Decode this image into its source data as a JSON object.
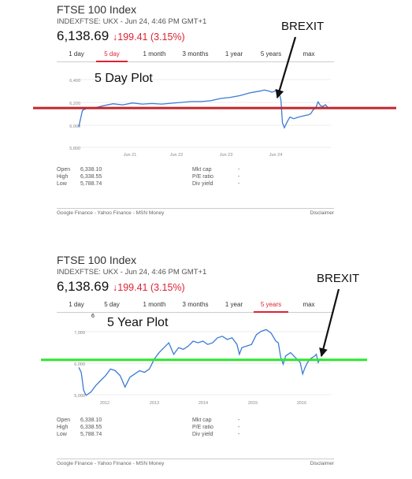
{
  "chart_data": [
    {
      "type": "line",
      "title": "FTSE 100 Index",
      "subtitle": "INDEXFTSE: UKX - Jun 24, 4:46 PM GMT+1",
      "price": "6,138.69",
      "change": "↓199.41 (3.15%)",
      "tabs": [
        "1 day",
        "5 day",
        "1 month",
        "3 months",
        "1 year",
        "5 years",
        "max"
      ],
      "selected_tab": "5 day",
      "plot_label": "5 Day Plot",
      "annotation": "BREXIT",
      "y_ticks": [
        "6,400",
        "6,200",
        "6,000",
        "5,800"
      ],
      "x_ticks": [
        "Jun 21",
        "Jun 22",
        "Jun 23",
        "Jun 24"
      ],
      "ylim": [
        5800,
        6500
      ],
      "xlim": [
        0,
        100
      ],
      "series": [
        {
          "values": [
            [
              0,
              6004
            ],
            [
              1.5,
              6150
            ],
            [
              3,
              6165
            ],
            [
              5,
              6165
            ],
            [
              10,
              6190
            ],
            [
              14,
              6208
            ],
            [
              18,
              6198
            ],
            [
              22,
              6215
            ],
            [
              26,
              6205
            ],
            [
              30,
              6210
            ],
            [
              34,
              6205
            ],
            [
              38,
              6213
            ],
            [
              42,
              6220
            ],
            [
              46,
              6228
            ],
            [
              50,
              6228
            ],
            [
              54,
              6235
            ],
            [
              58,
              6255
            ],
            [
              62,
              6265
            ],
            [
              66,
              6280
            ],
            [
              70,
              6305
            ],
            [
              74,
              6320
            ],
            [
              76,
              6330
            ],
            [
              78,
              6320
            ],
            [
              79,
              6310
            ],
            [
              80,
              6318
            ],
            [
              81,
              6330
            ],
            [
              82,
              6318
            ],
            [
              82.8,
              6235
            ],
            [
              83.4,
              6040
            ],
            [
              84.2,
              5995
            ],
            [
              85.5,
              6055
            ],
            [
              86.5,
              6090
            ],
            [
              88,
              6075
            ],
            [
              90,
              6090
            ],
            [
              92,
              6100
            ],
            [
              94,
              6110
            ],
            [
              95,
              6120
            ],
            [
              96,
              6155
            ],
            [
              97,
              6170
            ],
            [
              98,
              6225
            ],
            [
              99,
              6190
            ],
            [
              100,
              6185
            ],
            [
              101,
              6200
            ],
            [
              102,
              6175
            ]
          ]
        }
      ],
      "reference_line": {
        "y": 6170,
        "color": "#c0272d"
      },
      "stats": [
        {
          "label": "Open",
          "value": "6,338.10",
          "label2": "Mkt cap",
          "value2": "-"
        },
        {
          "label": "High",
          "value": "6,338.55",
          "label2": "P/E ratio",
          "value2": "-"
        },
        {
          "label": "Low",
          "value": "5,788.74",
          "label2": "Div yield",
          "value2": "-"
        }
      ],
      "footer_sources": "Google Finance - Yahoo Finance - MSN Money",
      "footer_disclaimer": "Disclaimer"
    },
    {
      "type": "line",
      "title": "FTSE 100 Index",
      "subtitle": "INDEXFTSE: UKX - Jun 24, 4:46 PM GMT+1",
      "price": "6,138.69",
      "change": "↓199.41 (3.15%)",
      "tabs": [
        "1 day",
        "5 day",
        "1 month",
        "3 months",
        "1 year",
        "5 years",
        "max"
      ],
      "selected_tab": "5 years",
      "plot_label": "5 Year Plot",
      "annotation": "BREXIT",
      "small_label": "6",
      "y_ticks": [
        "7,000",
        "6,000",
        "5,000"
      ],
      "x_ticks": [
        "2012",
        "2013",
        "2014",
        "2015",
        "2016"
      ],
      "ylim": [
        4900,
        7300
      ],
      "xlim": [
        2011.45,
        2016.5
      ],
      "series": [
        {
          "values": [
            [
              2011.45,
              5900
            ],
            [
              2011.5,
              5750
            ],
            [
              2011.55,
              5200
            ],
            [
              2011.6,
              5050
            ],
            [
              2011.7,
              5150
            ],
            [
              2011.8,
              5350
            ],
            [
              2011.9,
              5500
            ],
            [
              2012.0,
              5650
            ],
            [
              2012.1,
              5850
            ],
            [
              2012.2,
              5800
            ],
            [
              2012.3,
              5650
            ],
            [
              2012.4,
              5300
            ],
            [
              2012.45,
              5450
            ],
            [
              2012.5,
              5600
            ],
            [
              2012.6,
              5700
            ],
            [
              2012.7,
              5800
            ],
            [
              2012.8,
              5750
            ],
            [
              2012.9,
              5850
            ],
            [
              2013.0,
              6150
            ],
            [
              2013.1,
              6350
            ],
            [
              2013.2,
              6500
            ],
            [
              2013.3,
              6650
            ],
            [
              2013.4,
              6300
            ],
            [
              2013.5,
              6500
            ],
            [
              2013.6,
              6450
            ],
            [
              2013.7,
              6550
            ],
            [
              2013.8,
              6700
            ],
            [
              2013.9,
              6650
            ],
            [
              2014.0,
              6700
            ],
            [
              2014.1,
              6600
            ],
            [
              2014.2,
              6650
            ],
            [
              2014.3,
              6800
            ],
            [
              2014.4,
              6850
            ],
            [
              2014.5,
              6750
            ],
            [
              2014.6,
              6800
            ],
            [
              2014.7,
              6600
            ],
            [
              2014.75,
              6300
            ],
            [
              2014.8,
              6500
            ],
            [
              2014.9,
              6550
            ],
            [
              2015.0,
              6600
            ],
            [
              2015.1,
              6900
            ],
            [
              2015.2,
              7000
            ],
            [
              2015.3,
              7050
            ],
            [
              2015.4,
              6950
            ],
            [
              2015.5,
              6700
            ],
            [
              2015.55,
              6650
            ],
            [
              2015.6,
              6200
            ],
            [
              2015.65,
              6000
            ],
            [
              2015.7,
              6250
            ],
            [
              2015.8,
              6350
            ],
            [
              2015.9,
              6200
            ],
            [
              2016.0,
              6050
            ],
            [
              2016.05,
              5700
            ],
            [
              2016.1,
              5900
            ],
            [
              2016.15,
              6050
            ],
            [
              2016.2,
              6150
            ],
            [
              2016.25,
              6200
            ],
            [
              2016.3,
              6250
            ],
            [
              2016.33,
              6300
            ],
            [
              2016.37,
              6050
            ],
            [
              2016.4,
              6150
            ],
            [
              2016.45,
              6150
            ],
            [
              2016.5,
              6100
            ]
          ]
        }
      ],
      "reference_line": {
        "y": 6130,
        "color": "#2ee62e"
      },
      "stats": [
        {
          "label": "Open",
          "value": "6,338.10",
          "label2": "Mkt cap",
          "value2": "-"
        },
        {
          "label": "High",
          "value": "6,338.55",
          "label2": "P/E ratio",
          "value2": "-"
        },
        {
          "label": "Low",
          "value": "5,788.74",
          "label2": "Div yield",
          "value2": "-"
        }
      ],
      "footer_sources": "Google Finance - Yahoo Finance - MSN Money",
      "footer_disclaimer": "Disclaimer"
    }
  ]
}
